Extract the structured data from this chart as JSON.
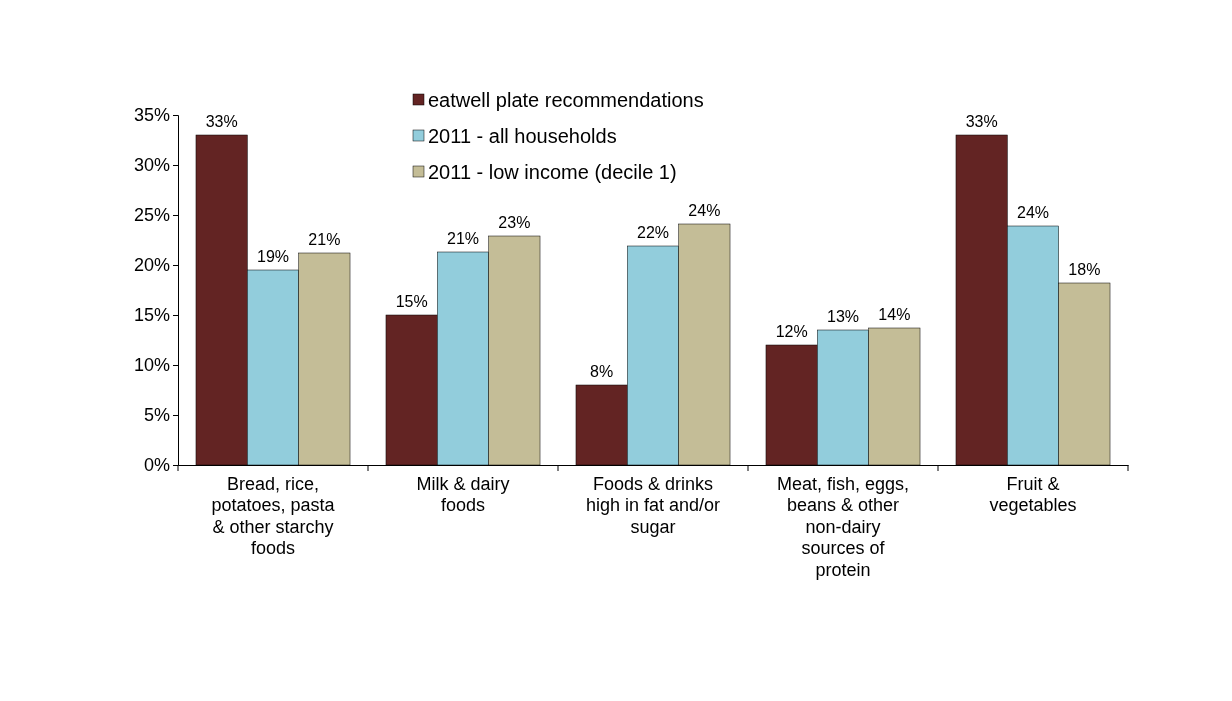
{
  "chart_data": {
    "type": "bar",
    "categories": [
      "Bread, rice, potatoes, pasta & other starchy foods",
      "Milk & dairy foods",
      "Foods & drinks high in fat and/or sugar",
      "Meat, fish, eggs, beans & other non-dairy sources of protein",
      "Fruit & vegetables"
    ],
    "series": [
      {
        "name": "eatwell plate recommendations",
        "color": "#632423",
        "values": [
          33,
          15,
          8,
          12,
          33
        ],
        "value_labels": [
          "33%",
          "15%",
          "8%",
          "12%",
          "33%"
        ]
      },
      {
        "name": "2011 - all households",
        "color": "#92cddc",
        "values": [
          19.5,
          21.3,
          21.9,
          13.5,
          23.9
        ],
        "value_labels": [
          "19%",
          "21%",
          "22%",
          "13%",
          "24%"
        ]
      },
      {
        "name": "2011 - low income (decile 1)",
        "color": "#c4bd97",
        "values": [
          21.2,
          22.9,
          24.1,
          13.7,
          18.2
        ],
        "value_labels": [
          "21%",
          "23%",
          "24%",
          "14%",
          "18%"
        ]
      }
    ],
    "ylim": [
      0,
      35
    ],
    "yticks": [
      {
        "value": 0,
        "label": "0%"
      },
      {
        "value": 5,
        "label": "5%"
      },
      {
        "value": 10,
        "label": "10%"
      },
      {
        "value": 15,
        "label": "15%"
      },
      {
        "value": 20,
        "label": "20%"
      },
      {
        "value": 25,
        "label": "25%"
      },
      {
        "value": 30,
        "label": "30%"
      },
      {
        "value": 35,
        "label": "35%"
      }
    ],
    "legend": "top",
    "grid": false
  }
}
